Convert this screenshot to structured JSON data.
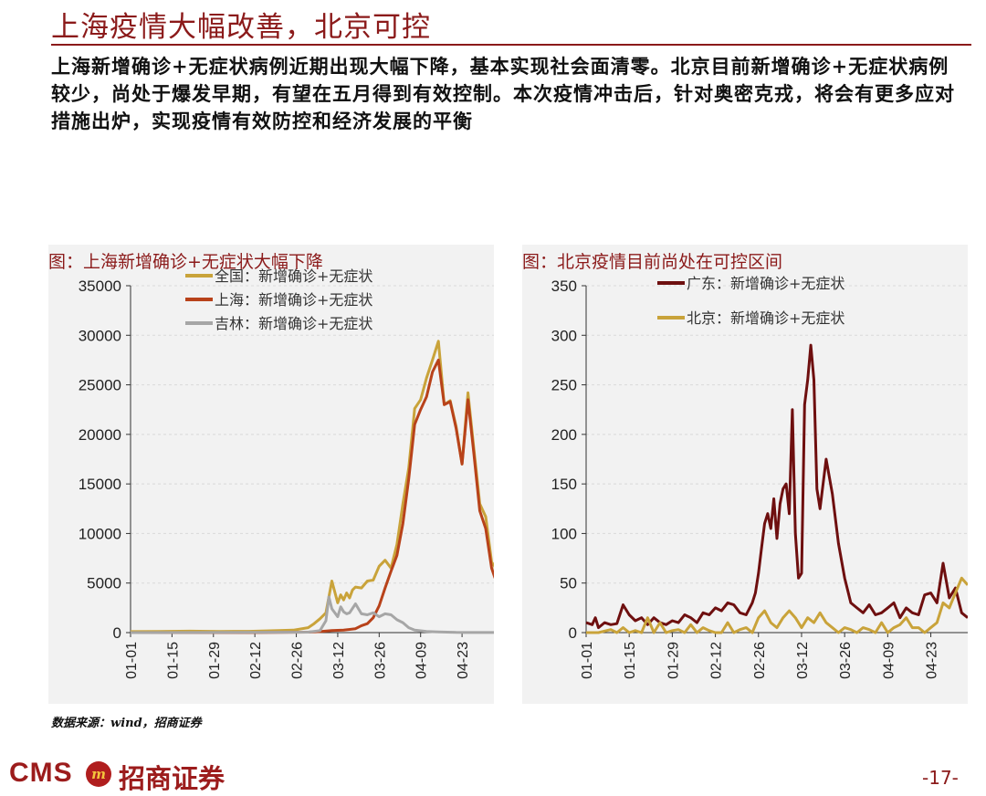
{
  "page": {
    "title": "上海疫情大幅改善，北京可控",
    "intro": "上海新增确诊+无症状病例近期出现大幅下降，基本实现社会面清零。北京目前新增确诊+无症状病例较少，尚处于爆发早期，有望在五月得到有效控制。本次疫情冲击后，针对奥密克戎，将会有更多应对措施出炉，实现疫情有效防控和经济发展的平衡",
    "source": "数据来源：wind，招商证券",
    "logo_text": "CMS",
    "logo_badge": "m",
    "logo_cn": "招商证券",
    "page_number": "-17-"
  },
  "chart_data": [
    {
      "type": "line",
      "title": "图：上海新增确诊+无症状大幅下降",
      "x_labels": [
        "01-01",
        "01-15",
        "01-29",
        "02-12",
        "02-26",
        "03-12",
        "03-26",
        "04-09",
        "04-23"
      ],
      "ylim": [
        0,
        35000
      ],
      "y_ticks": [
        "0",
        "5000",
        "10000",
        "15000",
        "20000",
        "25000",
        "30000",
        "35000"
      ],
      "grid": "horizontal dashed",
      "legend": "top-left",
      "series": [
        {
          "name": "全国：新增确诊+无症状",
          "color": "#c9a33a",
          "x": [
            0,
            10,
            20,
            30,
            40,
            50,
            55,
            60,
            62,
            64,
            66,
            68,
            70,
            71,
            72,
            73,
            74,
            75,
            76,
            78,
            80,
            82,
            84,
            86,
            88,
            90,
            92,
            94,
            96,
            98,
            100,
            102,
            104,
            106,
            108,
            110,
            112,
            114,
            116,
            118,
            120,
            122,
            123,
            124
          ],
          "y": [
            100,
            120,
            150,
            120,
            130,
            200,
            250,
            500,
            900,
            1400,
            2000,
            5200,
            3000,
            3800,
            3300,
            4000,
            3500,
            4300,
            4600,
            4500,
            5200,
            5300,
            6700,
            7300,
            6500,
            8900,
            13000,
            16600,
            22600,
            23500,
            25700,
            27500,
            29400,
            23000,
            23400,
            20800,
            17000,
            24200,
            18500,
            13000,
            11700,
            7100,
            6700,
            5100
          ]
        },
        {
          "name": "上海：新增确诊+无症状",
          "color": "#b8421a",
          "x": [
            0,
            40,
            60,
            64,
            68,
            72,
            76,
            78,
            80,
            82,
            84,
            86,
            88,
            90,
            92,
            94,
            96,
            98,
            100,
            102,
            104,
            106,
            108,
            110,
            112,
            114,
            116,
            118,
            120,
            122,
            123,
            124
          ],
          "y": [
            0,
            0,
            50,
            100,
            200,
            250,
            400,
            700,
            900,
            1500,
            2700,
            4500,
            6200,
            7800,
            11000,
            15500,
            21000,
            22500,
            23800,
            26300,
            27500,
            23000,
            23300,
            20600,
            17000,
            23500,
            18000,
            12300,
            10500,
            6500,
            5600,
            4900
          ]
        },
        {
          "name": "吉林：新增确诊+无症状",
          "color": "#a6a6a6",
          "x": [
            0,
            60,
            64,
            66,
            67,
            68,
            69,
            70,
            71,
            72,
            73,
            74,
            76,
            78,
            80,
            82,
            84,
            86,
            88,
            90,
            92,
            94,
            96,
            100,
            104,
            110,
            124
          ],
          "y": [
            0,
            50,
            200,
            1200,
            3600,
            2400,
            2000,
            1600,
            2600,
            2100,
            1900,
            2000,
            2900,
            1900,
            1800,
            2000,
            1600,
            1900,
            1800,
            1300,
            1000,
            500,
            250,
            120,
            60,
            20,
            10
          ]
        }
      ]
    },
    {
      "type": "line",
      "title": "图：北京疫情目前尚处在可控区间",
      "x_labels": [
        "01-01",
        "01-15",
        "01-29",
        "02-12",
        "02-26",
        "03-12",
        "03-26",
        "04-09",
        "04-23"
      ],
      "ylim": [
        0,
        350
      ],
      "y_ticks": [
        "0",
        "50",
        "100",
        "150",
        "200",
        "250",
        "300",
        "350"
      ],
      "grid": "horizontal dashed",
      "legend": "top-center",
      "series": [
        {
          "name": "广东：新增确诊+无症状",
          "color": "#6e0f0f",
          "x": [
            0,
            2,
            3,
            4,
            6,
            8,
            10,
            12,
            14,
            16,
            18,
            20,
            22,
            24,
            26,
            28,
            30,
            32,
            34,
            36,
            38,
            40,
            42,
            44,
            46,
            48,
            50,
            52,
            54,
            55,
            56,
            57,
            58,
            59,
            60,
            61,
            62,
            63,
            64,
            65,
            66,
            67,
            68,
            69,
            70,
            71,
            72,
            73,
            74,
            75,
            76,
            78,
            80,
            82,
            84,
            86,
            88,
            90,
            92,
            94,
            96,
            98,
            100,
            102,
            104,
            106,
            108,
            110,
            112,
            114,
            116,
            118,
            120,
            122,
            124
          ],
          "y": [
            10,
            8,
            15,
            5,
            10,
            8,
            9,
            28,
            18,
            12,
            15,
            8,
            15,
            10,
            8,
            12,
            10,
            18,
            15,
            10,
            20,
            18,
            25,
            22,
            30,
            28,
            20,
            18,
            30,
            40,
            60,
            85,
            110,
            120,
            105,
            135,
            95,
            130,
            145,
            150,
            120,
            225,
            100,
            55,
            60,
            230,
            255,
            290,
            255,
            145,
            125,
            175,
            140,
            90,
            55,
            30,
            25,
            20,
            28,
            18,
            20,
            25,
            30,
            15,
            25,
            20,
            18,
            38,
            40,
            30,
            70,
            35,
            45,
            20,
            15
          ]
        },
        {
          "name": "北京：新增确诊+无症状",
          "color": "#c9a33a",
          "x": [
            0,
            4,
            8,
            10,
            12,
            14,
            16,
            18,
            20,
            22,
            24,
            26,
            28,
            30,
            32,
            34,
            36,
            38,
            40,
            42,
            44,
            46,
            48,
            50,
            52,
            54,
            56,
            58,
            60,
            62,
            64,
            66,
            68,
            70,
            72,
            74,
            76,
            78,
            80,
            82,
            84,
            86,
            88,
            90,
            92,
            94,
            96,
            98,
            100,
            102,
            104,
            106,
            108,
            110,
            112,
            114,
            116,
            118,
            120,
            122,
            124
          ],
          "y": [
            0,
            0,
            3,
            0,
            5,
            0,
            2,
            0,
            15,
            0,
            10,
            0,
            2,
            3,
            0,
            8,
            0,
            5,
            2,
            0,
            0,
            10,
            0,
            3,
            5,
            0,
            15,
            22,
            10,
            5,
            15,
            22,
            15,
            5,
            15,
            10,
            20,
            10,
            5,
            0,
            5,
            3,
            0,
            5,
            3,
            0,
            10,
            0,
            5,
            8,
            15,
            5,
            5,
            0,
            5,
            10,
            30,
            25,
            40,
            55,
            48
          ]
        }
      ]
    }
  ]
}
